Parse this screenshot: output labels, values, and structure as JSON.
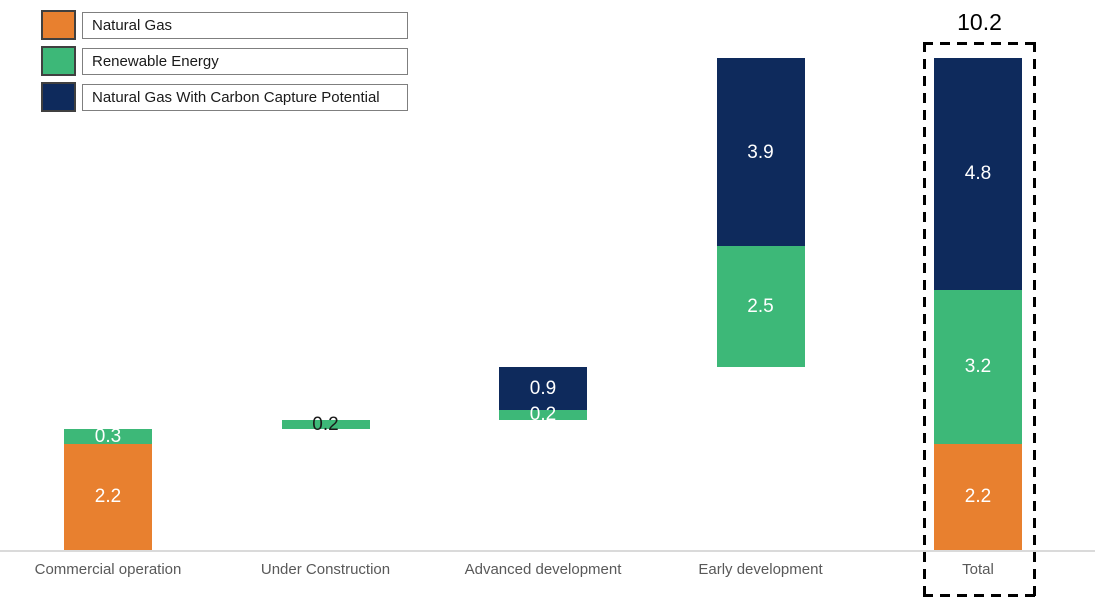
{
  "legend": {
    "items": [
      {
        "label": "Natural Gas",
        "color": "#E8802F"
      },
      {
        "label": "Renewable Energy",
        "color": "#3DB878"
      },
      {
        "label": "Natural Gas With Carbon Capture Potential",
        "color": "#0E2A5C"
      }
    ]
  },
  "chart_data": {
    "type": "bar",
    "subtype": "stacked-waterfall",
    "title": "",
    "xlabel": "",
    "ylabel": "",
    "ylim": [
      0,
      10.2
    ],
    "grid": false,
    "legend_position": "top-left",
    "categories": [
      "Commercial operation",
      "Under Construction",
      "Advanced development",
      "Early development",
      "Total"
    ],
    "series": [
      {
        "name": "Natural Gas",
        "color": "#E8802F",
        "values": [
          2.2,
          0,
          0,
          0,
          2.2
        ]
      },
      {
        "name": "Renewable Energy",
        "color": "#3DB878",
        "values": [
          0.3,
          0.2,
          0.2,
          2.5,
          3.2
        ]
      },
      {
        "name": "Natural Gas With Carbon Capture Potential",
        "color": "#0E2A5C",
        "values": [
          0,
          0,
          0.9,
          3.9,
          4.8
        ]
      }
    ],
    "bar_bases": [
      0,
      2.5,
      2.7,
      3.8,
      0
    ],
    "bar_totals": [
      2.5,
      0.2,
      1.1,
      6.4,
      10.2
    ],
    "value_label_colors": {
      "default": "#FFFFFF",
      "overrides": {
        "Under Construction": "#1A1A1A"
      }
    },
    "total_annotation": {
      "category": "Total",
      "value": 10.2,
      "label": "10.2"
    },
    "highlight": {
      "category": "Total",
      "style": "black-dashed-rectangle"
    }
  },
  "colors": {
    "background": "#FFFFFF",
    "axis_line": "#DADADA",
    "axis_text": "#595959",
    "legend_border": "#7F7F7F",
    "swatch_border": "#404040",
    "highlight_dash": "#000000"
  }
}
